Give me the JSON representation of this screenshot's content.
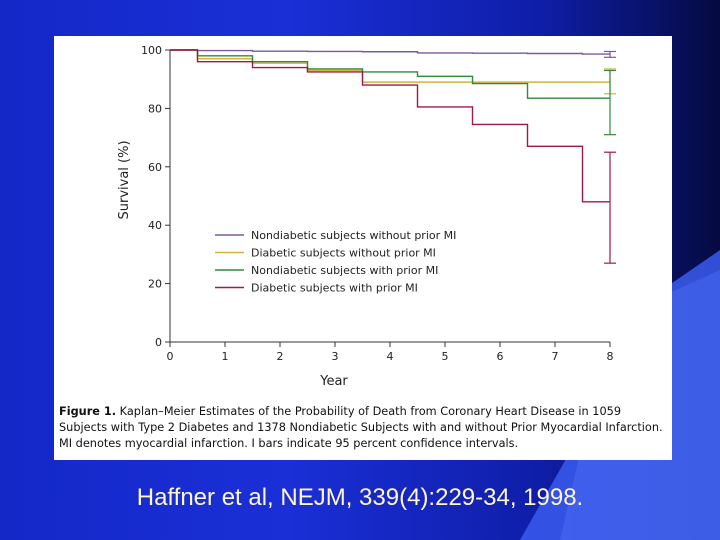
{
  "slide": {
    "citation": "Haffner et al, NEJM, 339(4):229-34, 1998."
  },
  "caption": {
    "figure_label": "Figure 1.",
    "text": "Kaplan–Meier Estimates of the Probability of Death from Coronary Heart Disease in 1059 Subjects with Type 2 Diabetes and 1378 Nondiabetic Subjects with and without Prior Myocardial Infarction. MI denotes myocardial infarction. I bars indicate 95 percent confidence intervals."
  },
  "chart_data": {
    "type": "line",
    "step": true,
    "xlabel": "Year",
    "ylabel": "Survival (%)",
    "xlim": [
      0,
      8
    ],
    "ylim": [
      0,
      100
    ],
    "xticks": [
      "0",
      "1",
      "2",
      "3",
      "4",
      "5",
      "6",
      "7",
      "8"
    ],
    "yticks": [
      "0",
      "20",
      "40",
      "60",
      "80",
      "100"
    ],
    "legend_position": "lower-left",
    "grid": false,
    "series": [
      {
        "name": "Nondiabetic subjects without prior MI",
        "color": "#7a5a9c",
        "x": [
          0,
          0.5,
          1.5,
          2.5,
          3.5,
          4.5,
          5.5,
          6.5,
          7.5,
          8
        ],
        "y": [
          100,
          99.8,
          99.6,
          99.5,
          99.4,
          99,
          98.9,
          98.8,
          98.6,
          98.5
        ],
        "ci_end": [
          97.5,
          99.5
        ]
      },
      {
        "name": "Diabetic subjects without prior MI",
        "color": "#d4b43a",
        "x": [
          0,
          0.5,
          1.5,
          2.5,
          3.5,
          4.5,
          5.5,
          6.5,
          7.5,
          8
        ],
        "y": [
          100,
          97,
          95.5,
          93,
          89,
          89,
          89,
          89,
          89,
          89
        ],
        "ci_end": [
          85,
          93.5
        ]
      },
      {
        "name": "Nondiabetic subjects with prior MI",
        "color": "#2e8b3a",
        "x": [
          0,
          0.5,
          1.5,
          2.5,
          3.5,
          4.5,
          5.5,
          6.5,
          7.5,
          8
        ],
        "y": [
          100,
          98,
          96,
          93.5,
          92.5,
          91,
          88.5,
          83.5,
          83.5,
          83.5
        ],
        "ci_end": [
          71,
          93
        ]
      },
      {
        "name": "Diabetic subjects with prior MI",
        "color": "#a01848",
        "x": [
          0,
          0.5,
          1.5,
          2.5,
          3.5,
          4.5,
          5.5,
          6.5,
          7.5,
          8
        ],
        "y": [
          100,
          96,
          94,
          92.5,
          88,
          80.5,
          74.5,
          67,
          48,
          48
        ],
        "ci_end": [
          27,
          65
        ]
      }
    ]
  }
}
